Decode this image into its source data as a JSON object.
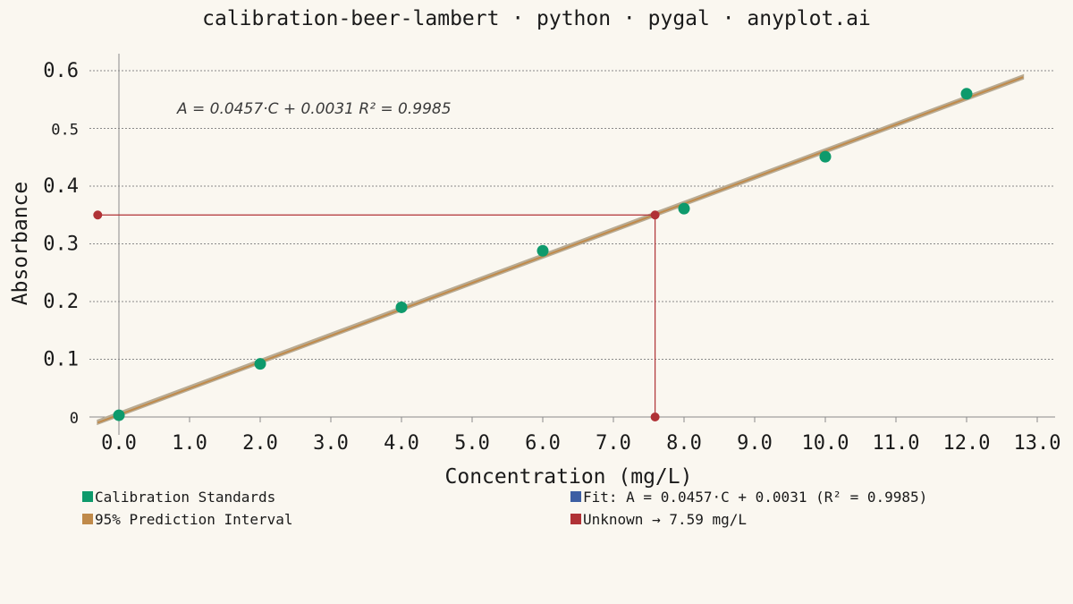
{
  "chart_data": {
    "type": "scatter",
    "title": "calibration-beer-lambert · python · pygal · anyplot.ai",
    "xlabel": "Concentration (mg/L)",
    "ylabel": "Absorbance",
    "xlim": [
      -0.3,
      13.0
    ],
    "ylim": [
      0,
      0.6
    ],
    "x_ticks": [
      "0.0",
      "1.0",
      "2.0",
      "3.0",
      "4.0",
      "5.0",
      "6.0",
      "7.0",
      "8.0",
      "9.0",
      "10.0",
      "11.0",
      "12.0",
      "13.0"
    ],
    "y_ticks": [
      "0",
      "0.1",
      "0.2",
      "0.3",
      "0.4",
      "0.5",
      "0.6"
    ],
    "annotation": "A = 0.0457·C + 0.0031 R² = 0.9985",
    "grid": "horizontal dotted",
    "legend_position": "bottom",
    "series": [
      {
        "name": "Calibration Standards",
        "color": "#0e9a6c",
        "points": [
          [
            0,
            0.003
          ],
          [
            2,
            0.092
          ],
          [
            4,
            0.19
          ],
          [
            6,
            0.288
          ],
          [
            8,
            0.361
          ],
          [
            10,
            0.451
          ],
          [
            12,
            0.56
          ]
        ]
      },
      {
        "name": "95% Prediction Interval",
        "color": "#c08a4a",
        "upper": [
          [
            -0.3,
            -0.006
          ],
          [
            12.8,
            0.592
          ]
        ],
        "lower": [
          [
            -0.3,
            -0.012
          ],
          [
            12.8,
            0.586
          ]
        ]
      },
      {
        "name": "Fit: A = 0.0457·C + 0.0031 (R² = 0.9985)",
        "color": "#3d5fa3",
        "slope": 0.0457,
        "intercept": 0.0031,
        "x_range": [
          -0.3,
          12.8
        ]
      },
      {
        "name": "Unknown → 7.59 mg/L",
        "color": "#b03236",
        "absorbance": 0.35,
        "concentration": 7.59
      }
    ]
  }
}
